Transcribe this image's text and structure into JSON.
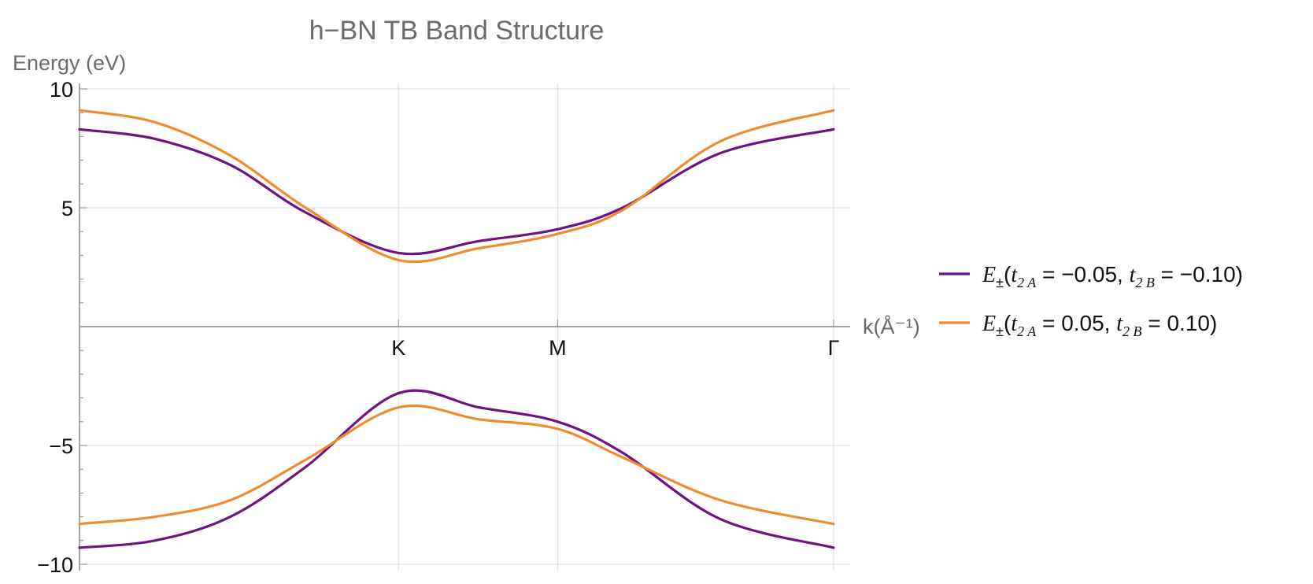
{
  "chart_data": {
    "type": "line",
    "title": "h−BN TB Band Structure",
    "xlabel": "k(Å⁻¹)",
    "ylabel": "Energy (eV)",
    "ylim": [
      -10,
      10
    ],
    "xlim": [
      0,
      1
    ],
    "grid": true,
    "legend_position": "right",
    "x_ticks": [
      {
        "label": "K",
        "x": 0.423
      },
      {
        "label": "M",
        "x": 0.634
      },
      {
        "label": "Γ",
        "x": 1.0
      }
    ],
    "y_ticks": [
      {
        "label": "10",
        "value": 10
      },
      {
        "label": "5",
        "value": 5
      },
      {
        "label": "−5",
        "value": -5
      },
      {
        "label": "−10",
        "value": -10
      }
    ],
    "series": [
      {
        "name": "E±(t2A = −0.05, t2B = −0.10)",
        "color": "#6e1482",
        "bands": [
          {
            "x": [
              0,
              0.1,
              0.2,
              0.3,
              0.423,
              0.53,
              0.634,
              0.72,
              0.85,
              1.0
            ],
            "y": [
              8.3,
              7.9,
              6.8,
              4.8,
              3.1,
              3.6,
              4.1,
              5.0,
              7.3,
              8.3
            ]
          },
          {
            "x": [
              0,
              0.1,
              0.2,
              0.3,
              0.423,
              0.53,
              0.634,
              0.72,
              0.85,
              1.0
            ],
            "y": [
              -9.3,
              -9.0,
              -8.0,
              -5.9,
              -2.8,
              -3.4,
              -4.0,
              -5.3,
              -8.1,
              -9.3
            ]
          }
        ]
      },
      {
        "name": "E±(t2A = 0.05,  t2B = 0.10)",
        "color": "#ef8c2f",
        "bands": [
          {
            "x": [
              0,
              0.1,
              0.2,
              0.3,
              0.423,
              0.53,
              0.634,
              0.72,
              0.85,
              1.0
            ],
            "y": [
              9.1,
              8.6,
              7.2,
              5.0,
              2.8,
              3.3,
              3.9,
              4.9,
              7.8,
              9.1
            ]
          },
          {
            "x": [
              0,
              0.1,
              0.2,
              0.3,
              0.423,
              0.53,
              0.634,
              0.72,
              0.85,
              1.0
            ],
            "y": [
              -8.3,
              -8.0,
              -7.3,
              -5.6,
              -3.4,
              -3.9,
              -4.3,
              -5.5,
              -7.3,
              -8.3
            ]
          }
        ]
      }
    ],
    "legend": [
      {
        "E": "E",
        "pm": "±",
        "open": "(",
        "t1": "t",
        "s1": "2 A",
        "v1": " = −0.05, ",
        "t2": "t",
        "s2": "2 B",
        "v2": " = −0.10)"
      },
      {
        "E": "E",
        "pm": "±",
        "open": "(",
        "t1": "t",
        "s1": "2 A",
        "v1": " = 0.05,  ",
        "t2": "t",
        "s2": "2 B",
        "v2": " = 0.10)"
      }
    ]
  }
}
